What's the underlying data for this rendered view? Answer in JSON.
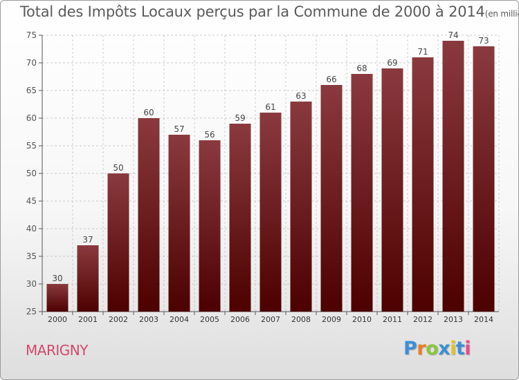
{
  "header": {
    "title": "Total des Impôts Locaux perçus par la Commune de 2000 à 2014",
    "subtitle": "(en milliers d'€)"
  },
  "commune": "MARIGNY",
  "logo": {
    "text": "Proxiti",
    "letter_colors": [
      "#3c8fd6",
      "#ee7d22",
      "#8cc63e",
      "#3c8fd6",
      "#e7c21f",
      "#3c8fd6",
      "#e94a89"
    ]
  },
  "colors": {
    "bar_top": "#8a3a3e",
    "bar_bottom": "#4d0000",
    "grid": "#bbbbbb",
    "axis": "#555555"
  },
  "chart_data": {
    "type": "bar",
    "title": "Total des Impôts Locaux perçus par la Commune de 2000 à 2014",
    "subtitle": "(en milliers d'€)",
    "xlabel": "",
    "ylabel": "",
    "categories": [
      "2000",
      "2001",
      "2002",
      "2003",
      "2004",
      "2005",
      "2006",
      "2007",
      "2008",
      "2009",
      "2010",
      "2011",
      "2012",
      "2013",
      "2014"
    ],
    "values": [
      30,
      37,
      50,
      60,
      57,
      56,
      59,
      61,
      63,
      66,
      68,
      69,
      71,
      74,
      73
    ],
    "ylim": [
      25,
      75
    ],
    "yticks": [
      25,
      30,
      35,
      40,
      45,
      50,
      55,
      60,
      65,
      70,
      75
    ],
    "grid": true,
    "data_labels": true
  }
}
